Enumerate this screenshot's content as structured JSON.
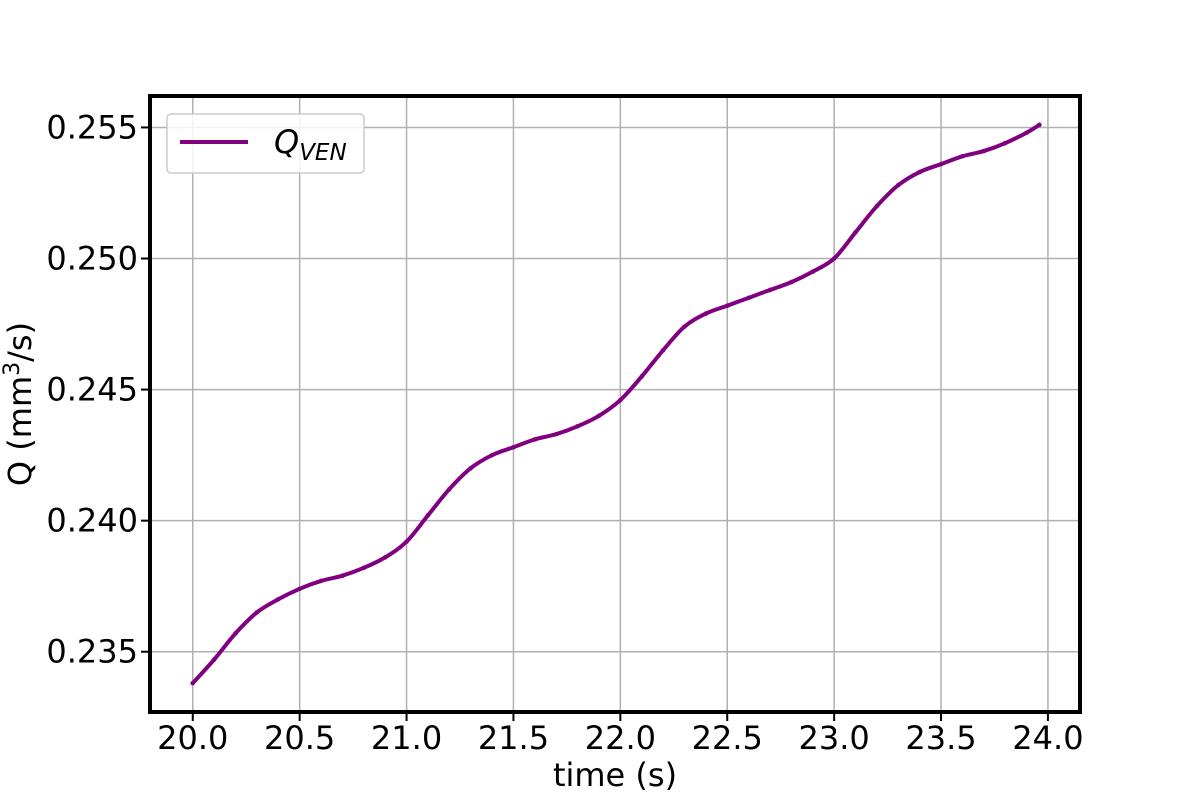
{
  "chart_data": {
    "type": "line",
    "xlabel": "time (s)",
    "ylabel": "Q (mm",
    "ylabel_sup": "3",
    "ylabel_end": "/s)",
    "xlim": [
      19.8,
      24.15
    ],
    "ylim": [
      0.2327,
      0.2562
    ],
    "xticks": [
      20.0,
      20.5,
      21.0,
      21.5,
      22.0,
      22.5,
      23.0,
      23.5,
      24.0
    ],
    "xtick_labels": [
      "20.0",
      "20.5",
      "21.0",
      "21.5",
      "22.0",
      "22.5",
      "23.0",
      "23.5",
      "24.0"
    ],
    "yticks": [
      0.235,
      0.24,
      0.245,
      0.25,
      0.255
    ],
    "ytick_labels": [
      "0.235",
      "0.240",
      "0.245",
      "0.250",
      "0.255"
    ],
    "grid": true,
    "legend_position": "upper-left",
    "series": [
      {
        "name": "Q",
        "name_sub": "VEN",
        "color": "#800080",
        "x": [
          20.0,
          20.1,
          20.2,
          20.3,
          20.4,
          20.5,
          20.6,
          20.7,
          20.8,
          20.9,
          21.0,
          21.1,
          21.2,
          21.3,
          21.4,
          21.5,
          21.6,
          21.7,
          21.8,
          21.9,
          22.0,
          22.1,
          22.2,
          22.3,
          22.4,
          22.5,
          22.6,
          22.7,
          22.8,
          22.9,
          23.0,
          23.1,
          23.2,
          23.3,
          23.4,
          23.5,
          23.6,
          23.7,
          23.8,
          23.9,
          23.96
        ],
        "y": [
          0.2338,
          0.2347,
          0.2357,
          0.2365,
          0.237,
          0.2374,
          0.2377,
          0.2379,
          0.2382,
          0.2386,
          0.2392,
          0.2402,
          0.2412,
          0.242,
          0.2425,
          0.2428,
          0.2431,
          0.2433,
          0.2436,
          0.244,
          0.2446,
          0.2455,
          0.2465,
          0.2474,
          0.2479,
          0.2482,
          0.2485,
          0.2488,
          0.2491,
          0.2495,
          0.25,
          0.251,
          0.252,
          0.2528,
          0.2533,
          0.2536,
          0.2539,
          0.2541,
          0.2544,
          0.2548,
          0.2551
        ]
      }
    ]
  }
}
